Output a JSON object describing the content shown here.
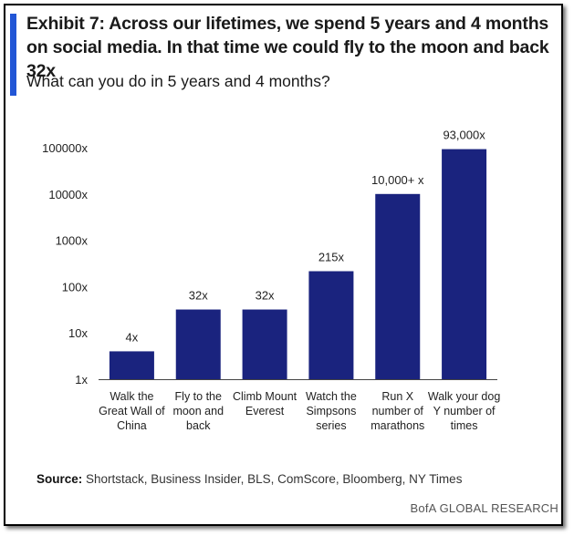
{
  "colors": {
    "accent": "#2256d6",
    "bar": "#1a237e",
    "axis": "#444444"
  },
  "header": {
    "title": "Exhibit 7: Across our lifetimes, we spend 5 years and 4 months on social media. In that time we could fly to the moon and back 32x",
    "subtitle": "What can you do in 5 years and 4 months?"
  },
  "footer": {
    "source_label": "Source:",
    "source_text": " Shortstack, Business Insider, BLS, ComScore, Bloomberg, NY Times",
    "brand": "BofA GLOBAL RESEARCH"
  },
  "chart_data": {
    "type": "bar",
    "scale": "log",
    "ylim": [
      1,
      100000
    ],
    "yticks": [
      {
        "value": 1,
        "label": "1x"
      },
      {
        "value": 10,
        "label": "10x"
      },
      {
        "value": 100,
        "label": "100x"
      },
      {
        "value": 1000,
        "label": "1000x"
      },
      {
        "value": 10000,
        "label": "10000x"
      },
      {
        "value": 100000,
        "label": "100000x"
      }
    ],
    "categories": [
      [
        "Walk the",
        "Great Wall of",
        "China"
      ],
      [
        "Fly to the",
        "moon and",
        "back"
      ],
      [
        "Climb Mount",
        "Everest"
      ],
      [
        "Watch the",
        "Simpsons",
        "series"
      ],
      [
        "Run X",
        "number of",
        "marathons"
      ],
      [
        "Walk your dog",
        "Y number of",
        "times"
      ]
    ],
    "values": [
      4,
      32,
      32,
      215,
      10000,
      93000
    ],
    "data_labels": [
      "4x",
      "32x",
      "32x",
      "215x",
      "10,000+ x",
      "93,000x"
    ],
    "grid": false,
    "legend": "none"
  }
}
